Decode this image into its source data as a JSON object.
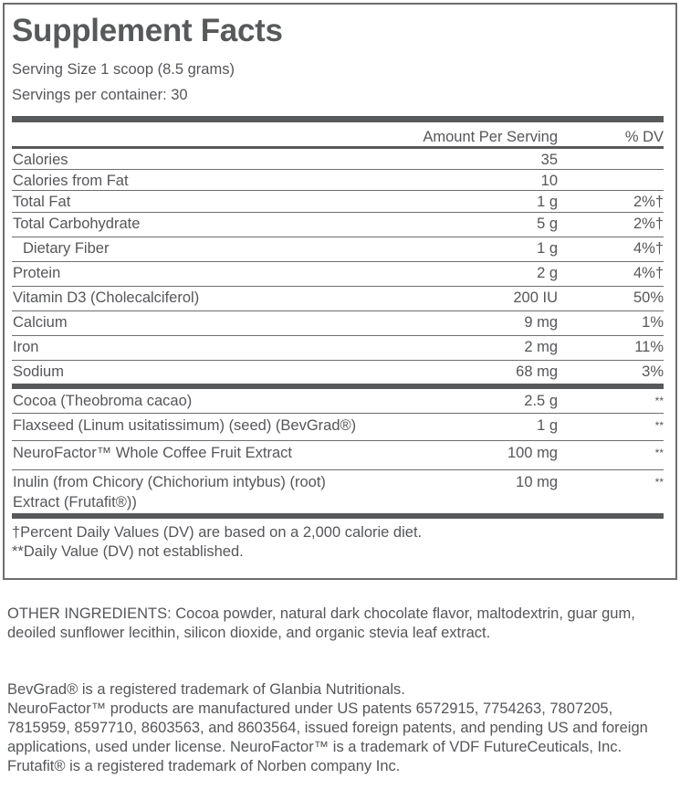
{
  "title": "Supplement Facts",
  "serving_size": "Serving Size 1 scoop (8.5 grams)",
  "servings_per_container": "Servings per container: 30",
  "header": {
    "amount": "Amount Per Serving",
    "dv": "% DV"
  },
  "nutrients": [
    {
      "name": "Calories",
      "amount": "35",
      "dv": ""
    },
    {
      "name": "Calories from Fat",
      "amount": "10",
      "dv": ""
    },
    {
      "name": "Total Fat",
      "amount": "1 g",
      "dv": "2%†"
    },
    {
      "name": "Total Carbohydrate",
      "amount": "5 g",
      "dv": "2%†"
    },
    {
      "name": "Dietary Fiber",
      "amount": "1 g",
      "dv": "4%†"
    },
    {
      "name": "Protein",
      "amount": "2 g",
      "dv": "4%†"
    },
    {
      "name": "Vitamin D3 (Cholecalciferol)",
      "amount": "200 IU",
      "dv": "50%"
    },
    {
      "name": "Calcium",
      "amount": "9 mg",
      "dv": "1%"
    },
    {
      "name": "Iron",
      "amount": "2 mg",
      "dv": "11%"
    },
    {
      "name": "Sodium",
      "amount": "68 mg",
      "dv": "3%"
    }
  ],
  "ingredients": [
    {
      "name": "Cocoa (Theobroma cacao)",
      "amount": "2.5 g",
      "dv": "**"
    },
    {
      "name": "Flaxseed (Linum usitatissimum) (seed) (BevGrad®)",
      "amount": "1 g",
      "dv": "**"
    },
    {
      "name": "NeuroFactor™ Whole Coffee Fruit Extract",
      "amount": "100 mg",
      "dv": "**"
    },
    {
      "name": "Inulin (from Chicory (Chichorium intybus) (root) Extract (Frutafit®))",
      "amount": "10 mg",
      "dv": "**"
    }
  ],
  "footnotes": [
    "†Percent Daily Values (DV) are based on a 2,000 calorie diet.",
    "**Daily Value (DV) not established."
  ],
  "other_ingredients": "OTHER INGREDIENTS: Cocoa powder, natural dark chocolate flavor, maltodextrin, guar gum, deoiled sunflower lecithin, silicon dioxide, and organic stevia leaf extract.",
  "trademarks": [
    "BevGrad® is a registered trademark of Glanbia Nutritionals.",
    "NeuroFactor™ products are manufactured under US patents 6572915, 7754263, 7807205, 7815959, 8597710, 8603563, and 8603564, issued foreign patents, and pending US and foreign applications, used under license. NeuroFactor™ is a trademark of VDF FutureCeuticals, Inc.",
    "Frutafit® is a registered trademark of Norben company Inc."
  ]
}
